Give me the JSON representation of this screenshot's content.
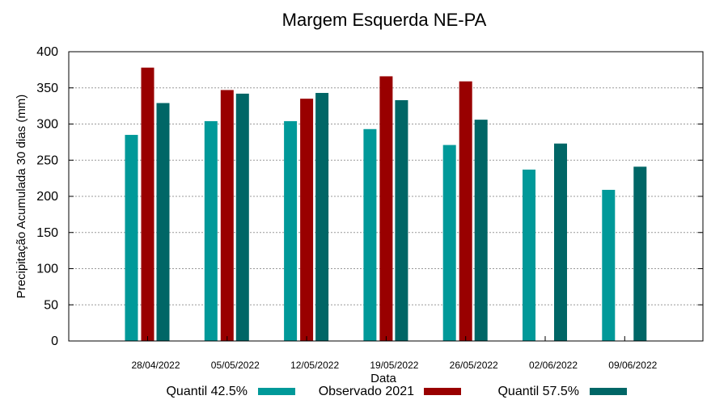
{
  "chart_data": {
    "type": "bar",
    "title": "Margem Esquerda NE-PA",
    "xlabel": "Data",
    "ylabel": "Precipitação Acumulada 30 dias (mm)",
    "ylim": [
      0,
      400
    ],
    "yticks": [
      0,
      50,
      100,
      150,
      200,
      250,
      300,
      350,
      400
    ],
    "grid": true,
    "legend_position": "bottom",
    "categories": [
      "28/04/2022",
      "05/05/2022",
      "12/05/2022",
      "19/05/2022",
      "26/05/2022",
      "02/06/2022",
      "09/06/2022"
    ],
    "series": [
      {
        "name": "Quantil 42.5%",
        "color": "#009999",
        "values": [
          285,
          304,
          304,
          293,
          271,
          237,
          209
        ]
      },
      {
        "name": "Observado 2021",
        "color": "#990000",
        "values": [
          378,
          347,
          335,
          366,
          359,
          null,
          null
        ]
      },
      {
        "name": "Quantil 57.5%",
        "color": "#006666",
        "values": [
          329,
          342,
          343,
          333,
          306,
          273,
          241
        ]
      }
    ]
  }
}
